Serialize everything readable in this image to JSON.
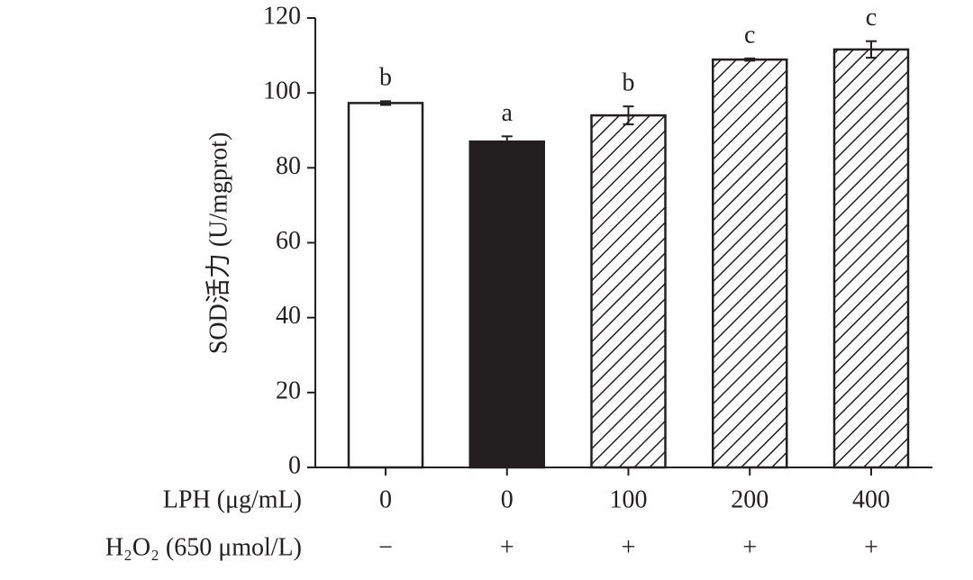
{
  "chart_data": {
    "type": "bar",
    "y_label": "SOD活力 (U/mgprot)",
    "row_labels": [
      "LPH (μg/mL)",
      "H₂O₂ (650 μmol/L)"
    ],
    "categories": [
      "0",
      "0",
      "100",
      "200",
      "400"
    ],
    "h2o2": [
      "−",
      "+",
      "+",
      "+",
      "+"
    ],
    "values": [
      97.3,
      87,
      94,
      108.9,
      111.6
    ],
    "errors": [
      0.5,
      1.4,
      2.4,
      0.3,
      2.2
    ],
    "letters": [
      "b",
      "a",
      "b",
      "c",
      "c"
    ],
    "bar_styles": [
      "open",
      "solid",
      "hatched",
      "hatched",
      "hatched"
    ],
    "color": "#231f20",
    "ylim": [
      0,
      120
    ],
    "yticks": [
      0,
      20,
      40,
      60,
      80,
      100,
      120
    ]
  }
}
